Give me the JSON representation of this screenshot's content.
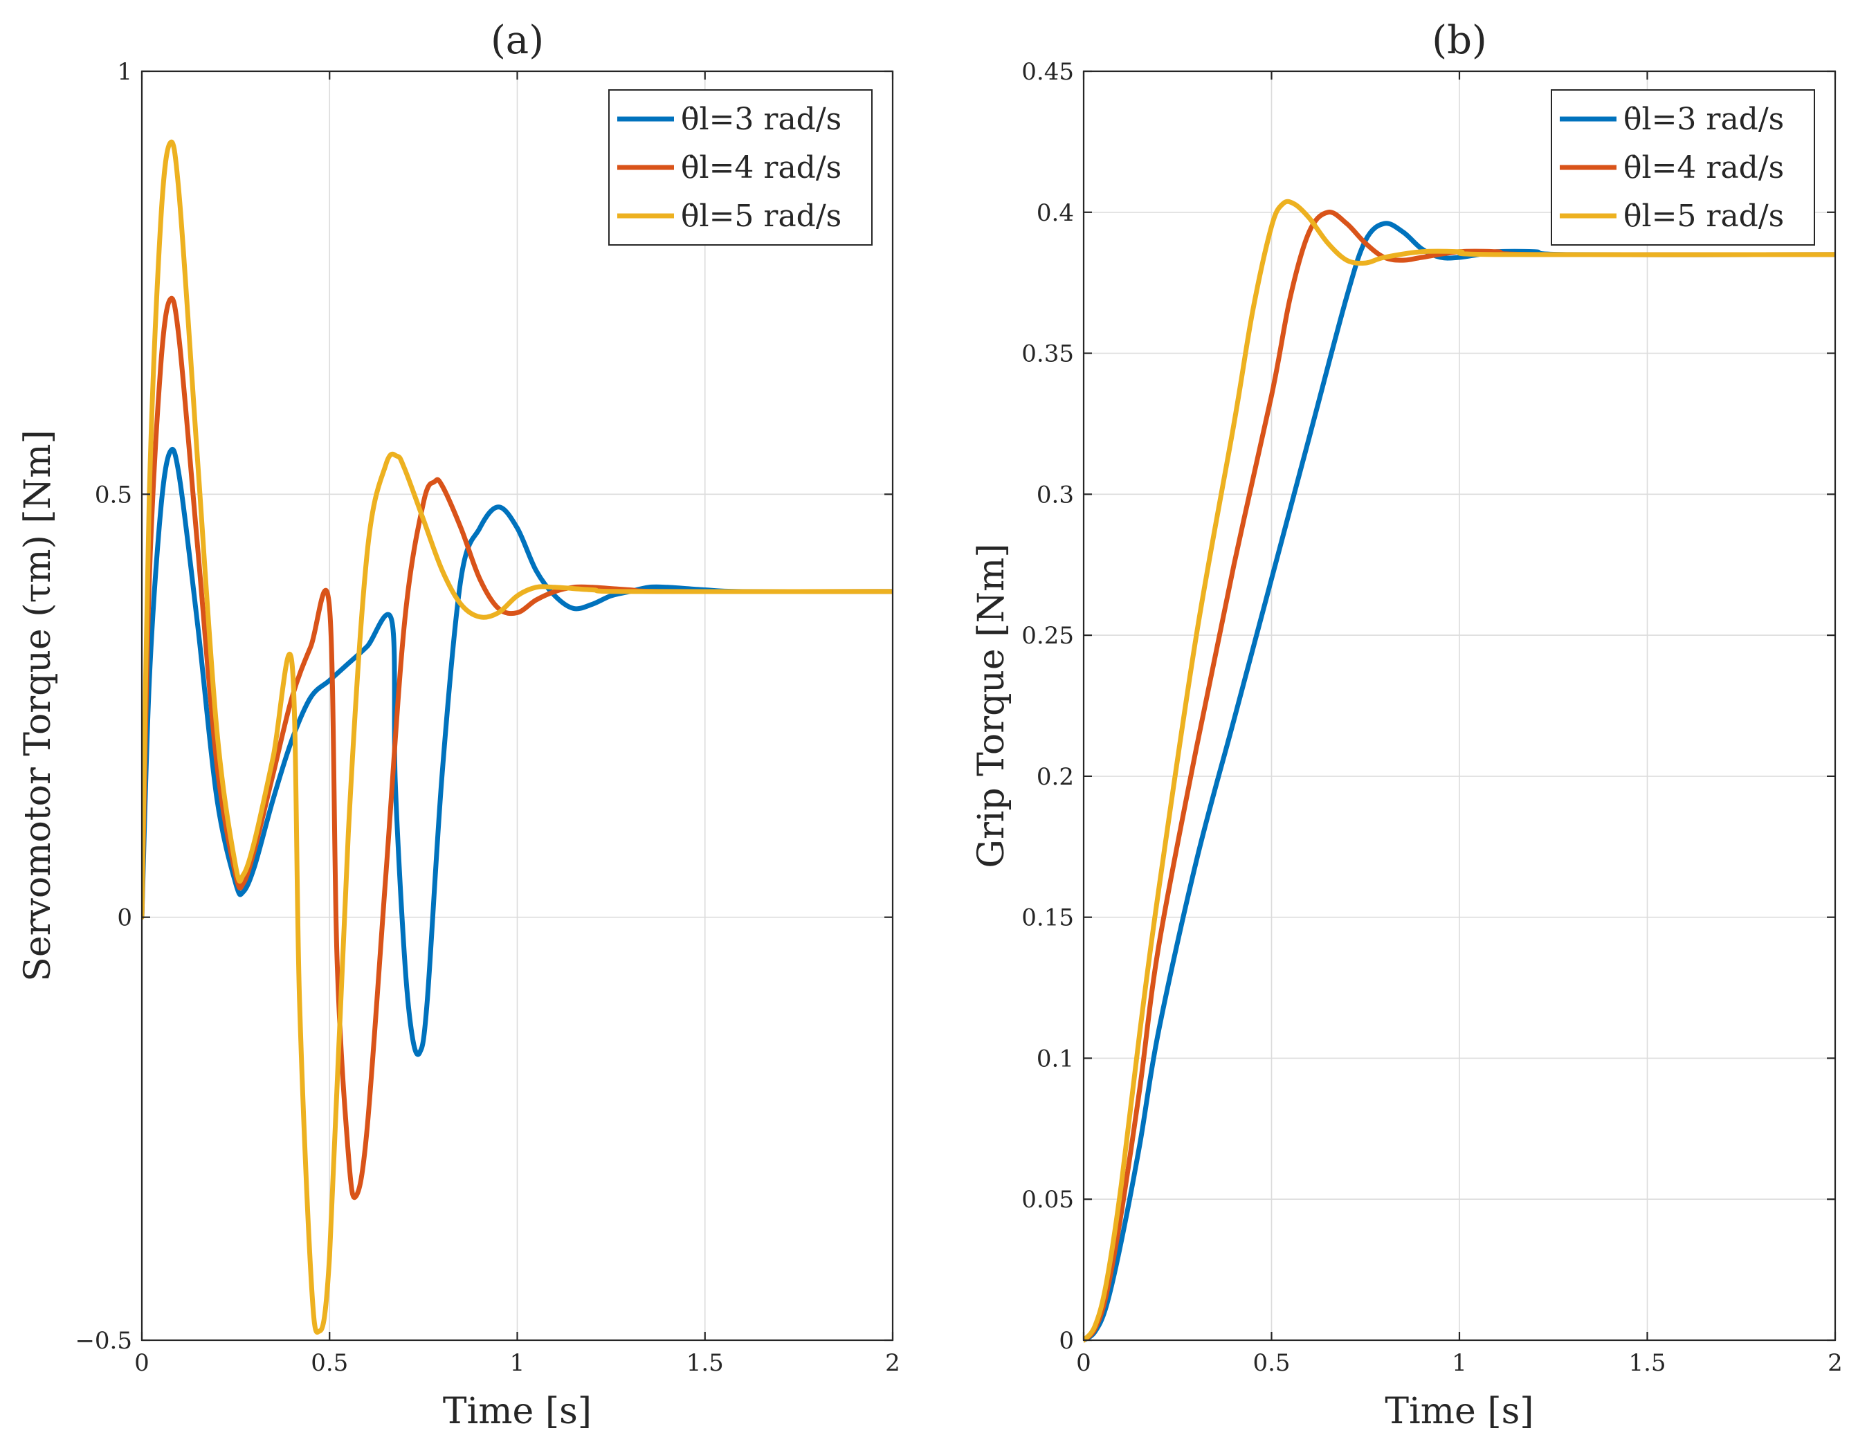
{
  "chart_data": [
    {
      "type": "line",
      "title": "(a)",
      "xlabel": "Time [s]",
      "ylabel": "Servomotor Torque (τm) [Nm]",
      "xlim": [
        0,
        2
      ],
      "ylim": [
        -0.5,
        1
      ],
      "xticks": [
        0,
        0.5,
        1,
        1.5,
        2
      ],
      "xtick_labels": [
        "0",
        "0.5",
        "1",
        "1.5",
        "2"
      ],
      "yticks": [
        -0.5,
        0,
        0.5,
        1
      ],
      "ytick_labels": [
        "−0.5",
        "0",
        "0.5",
        "1"
      ],
      "grid": true,
      "legend_position": "top-right",
      "series": [
        {
          "name": "θ̇l=3 rad/s",
          "color": "#0072BD",
          "x": [
            0,
            0.02,
            0.05,
            0.075,
            0.1,
            0.15,
            0.2,
            0.25,
            0.27,
            0.3,
            0.35,
            0.4,
            0.45,
            0.5,
            0.55,
            0.6,
            0.666,
            0.675,
            0.7,
            0.72,
            0.74,
            0.76,
            0.8,
            0.85,
            0.9,
            0.95,
            1.0,
            1.05,
            1.1,
            1.15,
            1.2,
            1.25,
            1.3,
            1.35,
            1.4,
            1.5,
            1.6,
            2.0
          ],
          "y": [
            0,
            0.28,
            0.48,
            0.55,
            0.52,
            0.34,
            0.14,
            0.04,
            0.03,
            0.06,
            0.14,
            0.21,
            0.26,
            0.28,
            0.3,
            0.32,
            0.35,
            0.16,
            -0.05,
            -0.14,
            -0.16,
            -0.1,
            0.17,
            0.4,
            0.46,
            0.485,
            0.46,
            0.41,
            0.38,
            0.365,
            0.37,
            0.38,
            0.385,
            0.39,
            0.39,
            0.387,
            0.385,
            0.385
          ]
        },
        {
          "name": "θ̇l=4 rad/s",
          "color": "#D95319",
          "x": [
            0,
            0.02,
            0.05,
            0.075,
            0.1,
            0.15,
            0.2,
            0.25,
            0.27,
            0.3,
            0.35,
            0.4,
            0.45,
            0.5,
            0.52,
            0.55,
            0.57,
            0.6,
            0.65,
            0.7,
            0.75,
            0.78,
            0.8,
            0.85,
            0.9,
            0.95,
            1.0,
            1.05,
            1.1,
            1.15,
            1.2,
            1.3,
            1.4,
            2.0
          ],
          "y": [
            0,
            0.4,
            0.65,
            0.73,
            0.68,
            0.43,
            0.18,
            0.05,
            0.04,
            0.08,
            0.17,
            0.26,
            0.32,
            0.365,
            -0.05,
            -0.28,
            -0.33,
            -0.25,
            0.05,
            0.35,
            0.49,
            0.515,
            0.51,
            0.46,
            0.4,
            0.365,
            0.36,
            0.375,
            0.385,
            0.39,
            0.39,
            0.387,
            0.385,
            0.385
          ]
        },
        {
          "name": "θ̇l=5 rad/s",
          "color": "#EDB120",
          "x": [
            0,
            0.02,
            0.05,
            0.075,
            0.1,
            0.15,
            0.2,
            0.25,
            0.27,
            0.3,
            0.35,
            0.4,
            0.42,
            0.45,
            0.47,
            0.5,
            0.55,
            0.6,
            0.65,
            0.68,
            0.7,
            0.75,
            0.8,
            0.85,
            0.9,
            0.95,
            1.0,
            1.05,
            1.1,
            1.2,
            1.3,
            2.0
          ],
          "y": [
            0,
            0.5,
            0.82,
            0.915,
            0.85,
            0.53,
            0.22,
            0.06,
            0.05,
            0.09,
            0.19,
            0.3,
            -0.1,
            -0.42,
            -0.49,
            -0.4,
            0.1,
            0.43,
            0.535,
            0.545,
            0.53,
            0.47,
            0.41,
            0.37,
            0.355,
            0.36,
            0.38,
            0.39,
            0.39,
            0.387,
            0.385,
            0.385
          ]
        }
      ]
    },
    {
      "type": "line",
      "title": "(b)",
      "xlabel": "Time [s]",
      "ylabel": "Grip Torque [Nm]",
      "xlim": [
        0,
        2
      ],
      "ylim": [
        0,
        0.45
      ],
      "xticks": [
        0,
        0.5,
        1,
        1.5,
        2
      ],
      "xtick_labels": [
        "0",
        "0.5",
        "1",
        "1.5",
        "2"
      ],
      "yticks": [
        0,
        0.05,
        0.1,
        0.15,
        0.2,
        0.25,
        0.3,
        0.35,
        0.4,
        0.45
      ],
      "ytick_labels": [
        "0",
        "0.05",
        "0.1",
        "0.15",
        "0.2",
        "0.25",
        "0.3",
        "0.35",
        "0.4",
        "0.45"
      ],
      "grid": true,
      "legend_position": "top-right",
      "series": [
        {
          "name": "θ̇l=3 rad/s",
          "color": "#0072BD",
          "x": [
            0,
            0.03,
            0.06,
            0.1,
            0.15,
            0.2,
            0.3,
            0.4,
            0.5,
            0.6,
            0.7,
            0.75,
            0.8,
            0.85,
            0.9,
            0.95,
            1.0,
            1.05,
            1.1,
            1.2,
            1.3,
            2.0
          ],
          "y": [
            0,
            0.003,
            0.012,
            0.035,
            0.07,
            0.11,
            0.17,
            0.22,
            0.27,
            0.32,
            0.37,
            0.39,
            0.396,
            0.393,
            0.387,
            0.384,
            0.384,
            0.385,
            0.386,
            0.386,
            0.385,
            0.385
          ]
        },
        {
          "name": "θ̇l=4 rad/s",
          "color": "#D95319",
          "x": [
            0,
            0.03,
            0.06,
            0.1,
            0.15,
            0.2,
            0.3,
            0.4,
            0.5,
            0.55,
            0.6,
            0.65,
            0.7,
            0.75,
            0.8,
            0.85,
            0.9,
            1.0,
            1.1,
            1.2,
            2.0
          ],
          "y": [
            0,
            0.004,
            0.016,
            0.045,
            0.09,
            0.14,
            0.21,
            0.275,
            0.335,
            0.37,
            0.393,
            0.4,
            0.396,
            0.389,
            0.384,
            0.383,
            0.384,
            0.386,
            0.386,
            0.385,
            0.385
          ]
        },
        {
          "name": "θ̇l=5 rad/s",
          "color": "#EDB120",
          "x": [
            0,
            0.03,
            0.06,
            0.1,
            0.15,
            0.2,
            0.3,
            0.4,
            0.45,
            0.5,
            0.53,
            0.56,
            0.6,
            0.65,
            0.7,
            0.75,
            0.8,
            0.9,
            1.0,
            1.1,
            2.0
          ],
          "y": [
            0,
            0.005,
            0.02,
            0.055,
            0.11,
            0.16,
            0.25,
            0.325,
            0.365,
            0.395,
            0.403,
            0.403,
            0.398,
            0.389,
            0.383,
            0.382,
            0.384,
            0.386,
            0.386,
            0.385,
            0.385
          ]
        }
      ]
    }
  ]
}
